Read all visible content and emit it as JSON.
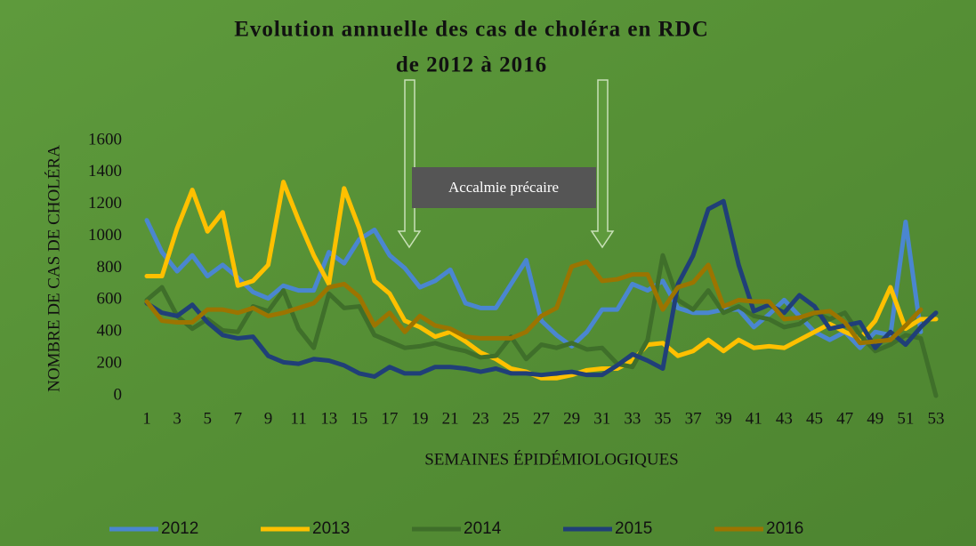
{
  "chart_data": {
    "type": "line",
    "title": [
      "Evolution annuelle des cas de choléra en RDC",
      "de 2012 à 2016"
    ],
    "annotation": "Accalmie précaire",
    "xlabel": "SEMAINES ÉPIDÉMIOLOGIQUES",
    "ylabel": "NOMBRE DE CAS DE CHOLÉRA",
    "x": [
      1,
      2,
      3,
      4,
      5,
      6,
      7,
      8,
      9,
      10,
      11,
      12,
      13,
      14,
      15,
      16,
      17,
      18,
      19,
      20,
      21,
      22,
      23,
      24,
      25,
      26,
      27,
      28,
      29,
      30,
      31,
      32,
      33,
      34,
      35,
      36,
      37,
      38,
      39,
      40,
      41,
      42,
      43,
      44,
      45,
      46,
      47,
      48,
      49,
      50,
      51,
      52,
      53
    ],
    "xlim": [
      1,
      53
    ],
    "xticks": [
      1,
      3,
      5,
      7,
      9,
      11,
      13,
      15,
      17,
      19,
      21,
      23,
      25,
      27,
      29,
      31,
      33,
      35,
      37,
      39,
      41,
      43,
      45,
      47,
      49,
      51,
      53
    ],
    "ylim": [
      0,
      1600
    ],
    "yticks": [
      0,
      200,
      400,
      600,
      800,
      1000,
      1200,
      1400,
      1600
    ],
    "grid": false,
    "legend": "bottom",
    "series": [
      {
        "name": "2012",
        "color": "#4a86d0",
        "values": [
          1100,
          900,
          780,
          880,
          750,
          820,
          740,
          650,
          610,
          690,
          660,
          660,
          900,
          830,
          980,
          1040,
          880,
          800,
          680,
          720,
          790,
          580,
          550,
          550,
          700,
          850,
          470,
          380,
          310,
          400,
          540,
          540,
          700,
          660,
          720,
          550,
          520,
          520,
          540,
          540,
          430,
          510,
          600,
          500,
          400,
          350,
          400,
          300,
          400,
          380,
          1090,
          400,
          null
        ]
      },
      {
        "name": "2013",
        "color": "#ffc000",
        "values": [
          750,
          750,
          1050,
          1290,
          1030,
          1150,
          690,
          720,
          820,
          1340,
          1100,
          880,
          700,
          1300,
          1050,
          720,
          640,
          470,
          430,
          370,
          400,
          340,
          270,
          230,
          170,
          150,
          110,
          110,
          130,
          160,
          170,
          170,
          220,
          320,
          330,
          250,
          280,
          350,
          280,
          350,
          300,
          310,
          300,
          350,
          400,
          450,
          400,
          360,
          470,
          680,
          420,
          480,
          480
        ]
      },
      {
        "name": "2014",
        "color": "#3f6f2a",
        "values": [
          600,
          680,
          500,
          420,
          480,
          410,
          400,
          560,
          530,
          660,
          420,
          300,
          640,
          550,
          560,
          380,
          340,
          300,
          310,
          330,
          300,
          280,
          240,
          250,
          370,
          230,
          320,
          300,
          330,
          290,
          300,
          200,
          180,
          350,
          880,
          600,
          540,
          660,
          520,
          560,
          500,
          480,
          430,
          450,
          520,
          480,
          520,
          380,
          280,
          320,
          380,
          360,
          0
        ]
      },
      {
        "name": "2015",
        "color": "#203f78",
        "values": [
          580,
          520,
          500,
          570,
          460,
          380,
          360,
          370,
          250,
          210,
          200,
          230,
          220,
          190,
          140,
          120,
          180,
          140,
          140,
          180,
          180,
          170,
          150,
          170,
          140,
          140,
          130,
          140,
          150,
          130,
          130,
          190,
          260,
          220,
          170,
          700,
          880,
          1170,
          1220,
          820,
          530,
          570,
          520,
          630,
          560,
          420,
          440,
          460,
          300,
          400,
          320,
          430,
          520
        ]
      },
      {
        "name": "2016",
        "color": "#9c7400",
        "values": [
          590,
          470,
          460,
          460,
          540,
          540,
          520,
          550,
          500,
          520,
          550,
          580,
          680,
          700,
          620,
          440,
          520,
          400,
          500,
          440,
          420,
          370,
          360,
          360,
          360,
          400,
          500,
          550,
          810,
          840,
          720,
          730,
          760,
          760,
          540,
          680,
          710,
          820,
          560,
          600,
          590,
          590,
          480,
          490,
          520,
          530,
          460,
          330,
          340,
          350,
          440,
          540,
          null
        ]
      }
    ]
  }
}
